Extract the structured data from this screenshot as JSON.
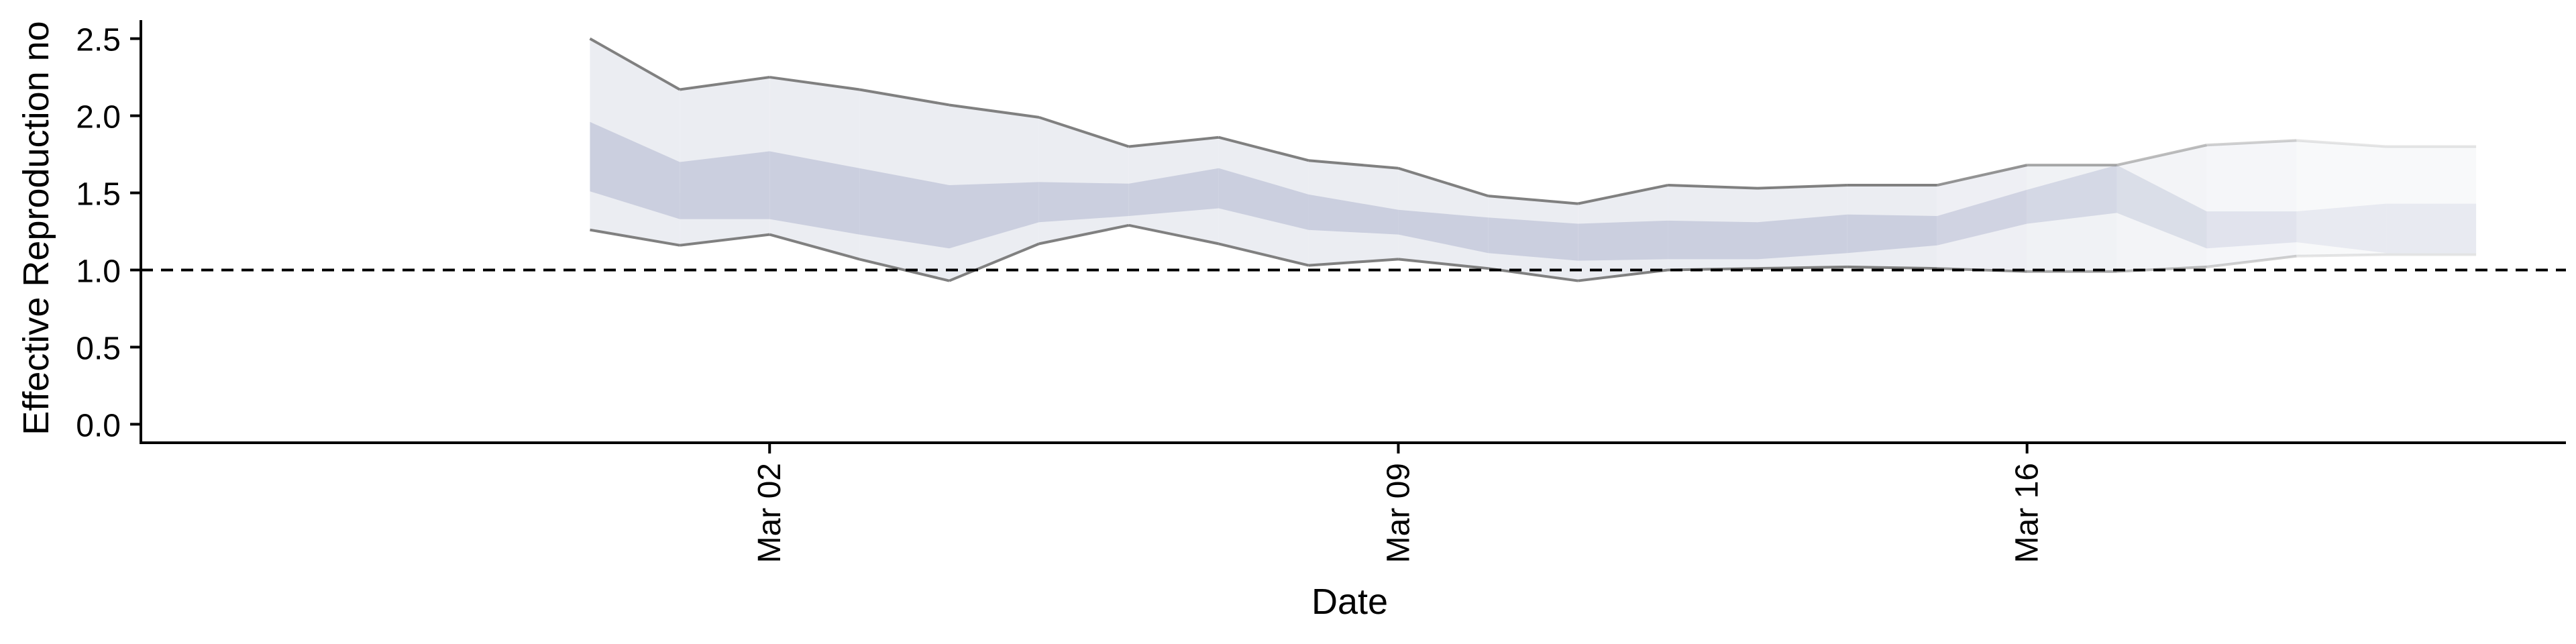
{
  "chart_data": {
    "type": "area",
    "title": "",
    "xlabel": "Date",
    "ylabel": "Effective Reproduction no",
    "x_ticks": [
      "Mar 02",
      "Mar 09",
      "Mar 16"
    ],
    "y_ticks": [
      "0.0",
      "0.5",
      "1.0",
      "1.5",
      "2.0",
      "2.5"
    ],
    "ylim": [
      -0.12,
      2.62
    ],
    "xlim": [
      "2020-02-24",
      "2020-03-22"
    ],
    "reference_line": {
      "y": 1.0,
      "style": "dashed"
    },
    "grid": false,
    "legend": "none",
    "x": [
      "2020-02-29",
      "2020-03-01",
      "2020-03-02",
      "2020-03-03",
      "2020-03-04",
      "2020-03-05",
      "2020-03-06",
      "2020-03-07",
      "2020-03-08",
      "2020-03-09",
      "2020-03-10",
      "2020-03-11",
      "2020-03-12",
      "2020-03-13",
      "2020-03-14",
      "2020-03-15",
      "2020-03-16",
      "2020-03-17",
      "2020-03-18",
      "2020-03-19",
      "2020-03-20",
      "2020-03-21"
    ],
    "outer_upper": [
      2.5,
      2.17,
      2.25,
      2.17,
      2.07,
      1.99,
      1.8,
      1.86,
      1.71,
      1.66,
      1.48,
      1.43,
      1.55,
      1.53,
      1.55,
      1.55,
      1.68,
      1.68,
      1.81,
      1.84,
      1.8,
      null
    ],
    "outer_lower": [
      1.26,
      1.16,
      1.23,
      1.07,
      0.93,
      1.17,
      1.29,
      1.17,
      1.03,
      1.07,
      1.01,
      0.93,
      1.0,
      1.01,
      1.02,
      1.01,
      0.99,
      0.99,
      1.02,
      1.09,
      1.1,
      null
    ],
    "inner_upper": [
      1.96,
      1.7,
      1.77,
      1.66,
      1.55,
      1.57,
      1.56,
      1.66,
      1.49,
      1.39,
      1.34,
      1.3,
      1.32,
      1.31,
      1.36,
      1.35,
      1.52,
      1.68,
      1.38,
      1.38,
      1.43,
      null
    ],
    "inner_lower": [
      1.51,
      1.33,
      1.33,
      1.23,
      1.14,
      1.31,
      1.35,
      1.4,
      1.26,
      1.23,
      1.11,
      1.06,
      1.07,
      1.07,
      1.11,
      1.16,
      1.3,
      1.37,
      1.14,
      1.18,
      1.11,
      null
    ],
    "colors": {
      "outer_band": "#ebedf2",
      "inner_band": "#cbcfdf",
      "bound_line": "#808080",
      "reference_line": "#000000",
      "axis": "#000000"
    }
  }
}
